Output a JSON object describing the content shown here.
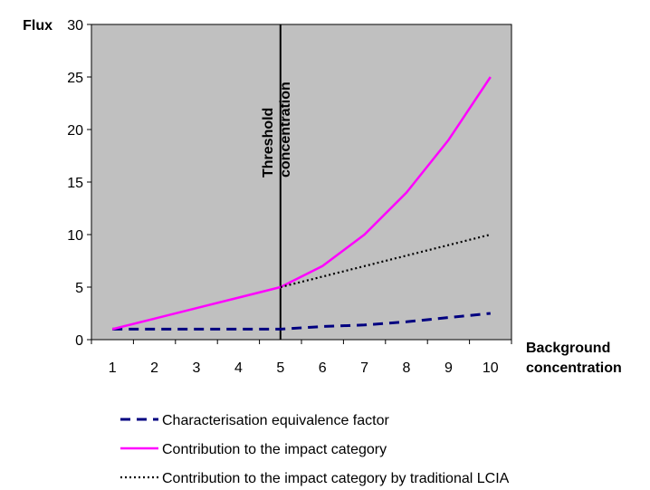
{
  "chart_data": {
    "type": "line",
    "ylabel": "Flux",
    "xlabel": "Background concentration",
    "xlabel_lines": [
      "Background",
      "concentration"
    ],
    "categories": [
      "1",
      "2",
      "3",
      "4",
      "5",
      "6",
      "7",
      "8",
      "9",
      "10"
    ],
    "yticks": [
      "0",
      "5",
      "10",
      "15",
      "20",
      "25",
      "30"
    ],
    "ylim": [
      0,
      30
    ],
    "plot_background": "#c0c0c0",
    "grid": false,
    "threshold": {
      "x": 5,
      "label_lines": [
        "Threshold",
        "concentration"
      ],
      "color": "#000000"
    },
    "series": [
      {
        "name": "Characterisation equivalence factor",
        "style": "dashed",
        "color": "#000080",
        "points": [
          [
            1,
            1.0
          ],
          [
            2,
            1.0
          ],
          [
            3,
            1.0
          ],
          [
            4,
            1.0
          ],
          [
            5,
            1.0
          ],
          [
            6,
            1.25
          ],
          [
            7,
            1.4
          ],
          [
            8,
            1.7
          ],
          [
            9,
            2.1
          ],
          [
            10,
            2.5
          ]
        ]
      },
      {
        "name": "Contribution to the impact category",
        "style": "solid",
        "color": "#ff00ff",
        "points": [
          [
            1,
            1.0
          ],
          [
            2,
            2.0
          ],
          [
            3,
            3.0
          ],
          [
            4,
            4.0
          ],
          [
            5,
            5.0
          ],
          [
            6,
            7.0
          ],
          [
            7,
            10.0
          ],
          [
            8,
            14.0
          ],
          [
            9,
            19.0
          ],
          [
            10,
            25.0
          ]
        ]
      },
      {
        "name": "Contribution to the impact category by traditional LCIA",
        "style": "dotted",
        "color": "#000000",
        "points": [
          [
            5,
            5.0
          ],
          [
            6,
            6.0
          ],
          [
            7,
            7.0
          ],
          [
            8,
            8.0
          ],
          [
            9,
            9.0
          ],
          [
            10,
            10.0
          ]
        ]
      }
    ],
    "legend_position": "bottom"
  }
}
